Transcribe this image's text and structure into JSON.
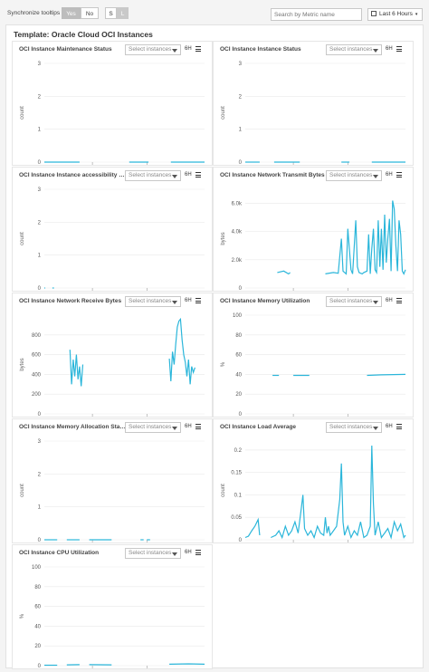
{
  "toolbar": {
    "sync_label": "Synchronize tooltips",
    "yes": "Yes",
    "no": "No",
    "size_s": "S",
    "size_l": "L",
    "search_placeholder": "Search by Metric name",
    "time_range": "Last 6 Hours"
  },
  "template_title": "Template: Oracle Cloud OCI Instances",
  "panel_controls": {
    "select": "Select instances",
    "period": "6H"
  },
  "charts": [
    {
      "title": "OCI Instance Maintenance Status",
      "ylabel": "count",
      "ticks": [
        "0",
        "1",
        "2",
        "3"
      ],
      "xticks": [
        "12:30 pm",
        "3:30 pm"
      ],
      "ymax": 3,
      "series": [
        [
          [
            0.0,
            0
          ],
          [
            0.22,
            0
          ]
        ],
        [
          [
            0.53,
            0
          ],
          [
            0.65,
            0
          ]
        ],
        [
          [
            0.79,
            0
          ],
          [
            1.0,
            0
          ]
        ]
      ]
    },
    {
      "title": "OCI Instance Instance Status",
      "ylabel": "count",
      "ticks": [
        "0",
        "1",
        "2",
        "3"
      ],
      "xticks": [
        "12:30 pm",
        "3:30 pm"
      ],
      "ymax": 3,
      "series": [
        [
          [
            0.0,
            0
          ],
          [
            0.09,
            0
          ]
        ],
        [
          [
            0.18,
            0
          ],
          [
            0.34,
            0
          ]
        ],
        [
          [
            0.6,
            0
          ],
          [
            0.65,
            0
          ]
        ],
        [
          [
            0.79,
            0
          ],
          [
            1.0,
            0
          ]
        ]
      ]
    },
    {
      "title": "OCI Instance Instance accessibility st...",
      "ylabel": "count",
      "ticks": [
        "0",
        "1",
        "2",
        "3"
      ],
      "xticks": [
        "12:30 pm",
        "3:30 pm"
      ],
      "ymax": 3,
      "series": [
        [
          [
            0.0,
            0
          ],
          [
            0.005,
            0
          ]
        ],
        [
          [
            0.05,
            0
          ],
          [
            0.06,
            0
          ]
        ]
      ]
    },
    {
      "title": "OCI Instance Network Transmit Bytes",
      "ylabel": "bytes",
      "ticks": [
        "0",
        "2.0k",
        "4.0k",
        "6.0k"
      ],
      "xticks": [
        "12:30 pm",
        "3:30 pm"
      ],
      "ymax": 7000,
      "series": [
        [
          [
            0.2,
            1100
          ],
          [
            0.24,
            1200
          ],
          [
            0.27,
            1000
          ],
          [
            0.28,
            1100
          ]
        ],
        [
          [
            0.5,
            1000
          ],
          [
            0.55,
            1100
          ],
          [
            0.58,
            1050
          ],
          [
            0.6,
            3500
          ],
          [
            0.61,
            1200
          ],
          [
            0.63,
            1000
          ],
          [
            0.64,
            4200
          ],
          [
            0.66,
            1300
          ],
          [
            0.67,
            1000
          ],
          [
            0.69,
            4800
          ],
          [
            0.7,
            1500
          ],
          [
            0.71,
            1100
          ],
          [
            0.73,
            1000
          ],
          [
            0.74,
            1100
          ],
          [
            0.76,
            1200
          ],
          [
            0.77,
            3800
          ],
          [
            0.78,
            1000
          ],
          [
            0.79,
            2800
          ],
          [
            0.8,
            4200
          ],
          [
            0.81,
            1300
          ],
          [
            0.82,
            1100
          ],
          [
            0.83,
            4800
          ],
          [
            0.84,
            1500
          ],
          [
            0.85,
            4200
          ],
          [
            0.86,
            1300
          ],
          [
            0.87,
            5200
          ],
          [
            0.88,
            1800
          ],
          [
            0.89,
            3500
          ],
          [
            0.9,
            4900
          ],
          [
            0.91,
            1200
          ],
          [
            0.92,
            6200
          ],
          [
            0.93,
            5600
          ],
          [
            0.94,
            3000
          ],
          [
            0.95,
            1200
          ],
          [
            0.96,
            4800
          ],
          [
            0.97,
            3800
          ],
          [
            0.98,
            1200
          ],
          [
            0.99,
            1000
          ],
          [
            1.0,
            1300
          ]
        ]
      ]
    },
    {
      "title": "OCI Instance Network Receive Bytes",
      "ylabel": "bytes",
      "ticks": [
        "0",
        "200",
        "400",
        "600",
        "800"
      ],
      "xticks": [
        "12:30 pm",
        "3:30 pm"
      ],
      "ymax": 1000,
      "series": [
        [
          [
            0.16,
            650
          ],
          [
            0.17,
            300
          ],
          [
            0.18,
            550
          ],
          [
            0.19,
            380
          ],
          [
            0.2,
            600
          ],
          [
            0.21,
            350
          ],
          [
            0.22,
            480
          ],
          [
            0.23,
            280
          ],
          [
            0.24,
            500
          ]
        ],
        [
          [
            0.78,
            560
          ],
          [
            0.79,
            330
          ],
          [
            0.8,
            630
          ],
          [
            0.81,
            500
          ],
          [
            0.82,
            700
          ],
          [
            0.83,
            880
          ],
          [
            0.84,
            940
          ],
          [
            0.85,
            960
          ],
          [
            0.86,
            750
          ],
          [
            0.87,
            600
          ],
          [
            0.88,
            520
          ],
          [
            0.89,
            380
          ],
          [
            0.9,
            550
          ],
          [
            0.91,
            300
          ],
          [
            0.92,
            480
          ],
          [
            0.93,
            420
          ],
          [
            0.94,
            470
          ]
        ]
      ]
    },
    {
      "title": "OCI Instance Memory Utilization",
      "ylabel": "%",
      "ticks": [
        "0",
        "20",
        "40",
        "60",
        "80",
        "100"
      ],
      "xticks": [
        "12:30 pm",
        "3:30 pm"
      ],
      "ymax": 100,
      "series": [
        [
          [
            0.17,
            39
          ],
          [
            0.21,
            39
          ]
        ],
        [
          [
            0.3,
            39
          ],
          [
            0.4,
            39
          ]
        ],
        [
          [
            0.76,
            39
          ],
          [
            0.85,
            39.5
          ],
          [
            1.0,
            40
          ]
        ]
      ]
    },
    {
      "title": "OCI Instance Memory Allocation Stalls",
      "ylabel": "count",
      "ticks": [
        "0",
        "1",
        "2",
        "3"
      ],
      "xticks": [
        "12:30 pm",
        "3:30 pm"
      ],
      "ymax": 3,
      "series": [
        [
          [
            0.0,
            0
          ],
          [
            0.08,
            0
          ]
        ],
        [
          [
            0.14,
            0
          ],
          [
            0.22,
            0
          ]
        ],
        [
          [
            0.28,
            0
          ],
          [
            0.42,
            0
          ]
        ],
        [
          [
            0.6,
            0
          ],
          [
            0.62,
            0
          ]
        ],
        [
          [
            0.64,
            0
          ],
          [
            0.66,
            0
          ]
        ]
      ]
    },
    {
      "title": "OCI Instance Load Average",
      "ylabel": "count",
      "ticks": [
        "0",
        "0.05",
        "0.1",
        "0.15",
        "0.2"
      ],
      "xticks": [
        "12:30 pm",
        "3:30 pm"
      ],
      "ymax": 0.22,
      "series": [
        [
          [
            0.0,
            0.005
          ],
          [
            0.02,
            0.008
          ],
          [
            0.04,
            0.02
          ],
          [
            0.06,
            0.03
          ],
          [
            0.08,
            0.045
          ],
          [
            0.09,
            0.01
          ]
        ],
        [
          [
            0.16,
            0.005
          ],
          [
            0.19,
            0.01
          ],
          [
            0.21,
            0.02
          ],
          [
            0.23,
            0.005
          ],
          [
            0.25,
            0.03
          ],
          [
            0.27,
            0.01
          ],
          [
            0.29,
            0.02
          ],
          [
            0.31,
            0.04
          ],
          [
            0.33,
            0.015
          ],
          [
            0.35,
            0.07
          ],
          [
            0.36,
            0.1
          ],
          [
            0.37,
            0.025
          ],
          [
            0.39,
            0.01
          ],
          [
            0.41,
            0.02
          ],
          [
            0.43,
            0.005
          ],
          [
            0.45,
            0.03
          ],
          [
            0.47,
            0.015
          ],
          [
            0.49,
            0.01
          ],
          [
            0.5,
            0.05
          ],
          [
            0.51,
            0.015
          ],
          [
            0.52,
            0.03
          ],
          [
            0.53,
            0.01
          ],
          [
            0.55,
            0.02
          ],
          [
            0.57,
            0.03
          ],
          [
            0.59,
            0.09
          ],
          [
            0.6,
            0.17
          ],
          [
            0.61,
            0.04
          ],
          [
            0.62,
            0.01
          ],
          [
            0.64,
            0.03
          ],
          [
            0.66,
            0.005
          ],
          [
            0.68,
            0.02
          ],
          [
            0.7,
            0.01
          ],
          [
            0.72,
            0.04
          ],
          [
            0.74,
            0.005
          ],
          [
            0.76,
            0.01
          ],
          [
            0.78,
            0.03
          ],
          [
            0.79,
            0.21
          ],
          [
            0.8,
            0.08
          ],
          [
            0.81,
            0.01
          ],
          [
            0.83,
            0.04
          ],
          [
            0.85,
            0.005
          ],
          [
            0.87,
            0.015
          ],
          [
            0.89,
            0.025
          ],
          [
            0.91,
            0.005
          ],
          [
            0.93,
            0.04
          ],
          [
            0.95,
            0.02
          ],
          [
            0.97,
            0.035
          ],
          [
            0.99,
            0.005
          ],
          [
            1.0,
            0.01
          ]
        ]
      ]
    },
    {
      "title": "OCI Instance CPU Utilization",
      "ylabel": "%",
      "ticks": [
        "0",
        "20",
        "40",
        "60",
        "80",
        "100"
      ],
      "xticks": [
        "12:30 pm",
        "3:30 pm"
      ],
      "ymax": 100,
      "series": [
        [
          [
            0.0,
            0.5
          ],
          [
            0.08,
            0.5
          ]
        ],
        [
          [
            0.14,
            0.8
          ],
          [
            0.22,
            1.0
          ]
        ],
        [
          [
            0.28,
            1.0
          ],
          [
            0.42,
            0.8
          ]
        ],
        [
          [
            0.78,
            1.5
          ],
          [
            0.9,
            1.8
          ],
          [
            1.0,
            1.5
          ]
        ]
      ]
    }
  ]
}
